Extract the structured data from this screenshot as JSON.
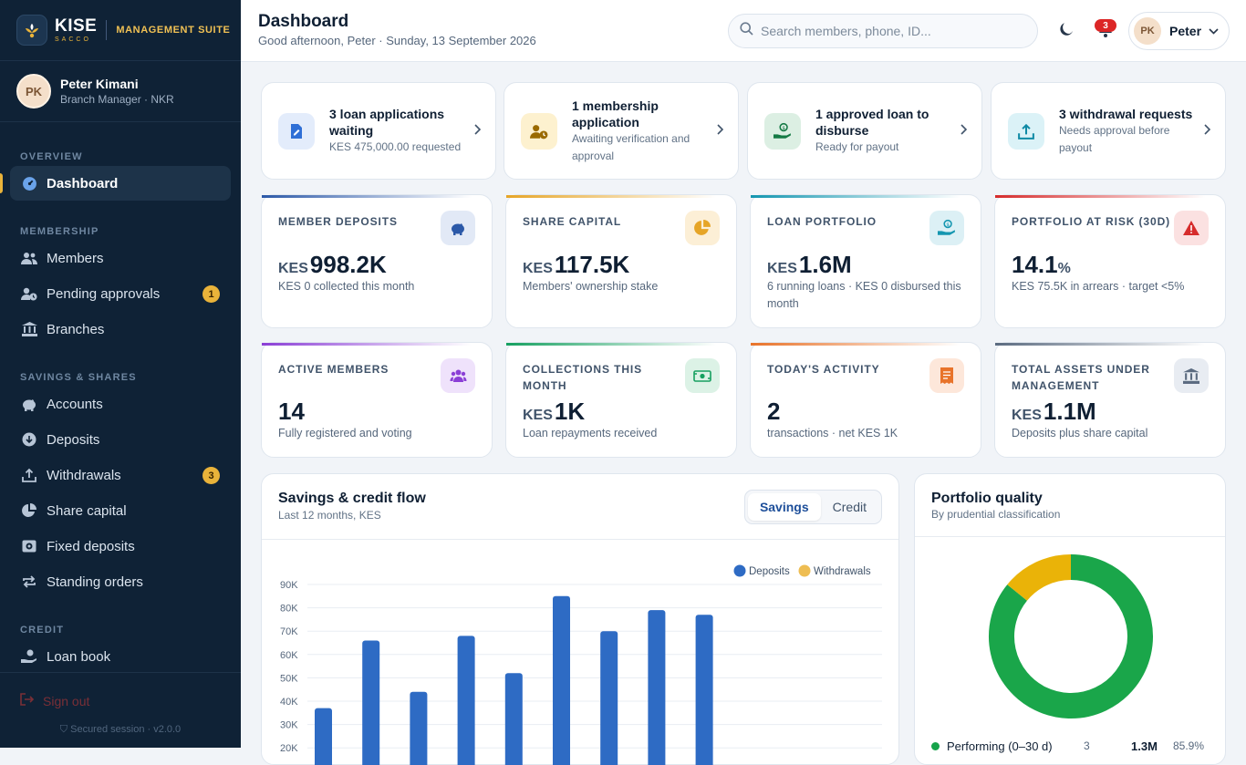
{
  "brand": {
    "name": "KISE",
    "tag": "SACCO",
    "suite": "MANAGEMENT SUITE"
  },
  "profile": {
    "initials": "PK",
    "name": "Peter Kimani",
    "role": "Branch Manager · NKR"
  },
  "nav": {
    "overview": {
      "title": "OVERVIEW",
      "items": [
        {
          "label": "Dashboard",
          "icon": "gauge-icon"
        }
      ]
    },
    "membership": {
      "title": "MEMBERSHIP",
      "items": [
        {
          "label": "Members",
          "icon": "users-icon"
        },
        {
          "label": "Pending approvals",
          "icon": "user-clock-icon",
          "badge": "1"
        },
        {
          "label": "Branches",
          "icon": "bank-icon"
        }
      ]
    },
    "savings": {
      "title": "SAVINGS & SHARES",
      "items": [
        {
          "label": "Accounts",
          "icon": "piggy-bank-icon"
        },
        {
          "label": "Deposits",
          "icon": "download-icon"
        },
        {
          "label": "Withdrawals",
          "icon": "upload-icon",
          "badge": "3"
        },
        {
          "label": "Share capital",
          "icon": "pie-icon"
        },
        {
          "label": "Fixed deposits",
          "icon": "vault-icon"
        },
        {
          "label": "Standing orders",
          "icon": "repeat-icon"
        }
      ]
    },
    "credit": {
      "title": "CREDIT",
      "items": [
        {
          "label": "Loan book",
          "icon": "hand-coin-icon"
        }
      ]
    }
  },
  "footer": {
    "signout": "Sign out",
    "secure": "Secured session · v2.0.0"
  },
  "header": {
    "title": "Dashboard",
    "subtitle": "Good afternoon, Peter · Sunday, 13 September 2026",
    "search_placeholder": "Search members, phone, ID...",
    "notifications": "3",
    "user_initials": "PK",
    "user_name": "Peter"
  },
  "actions": [
    {
      "title": "3 loan applications waiting",
      "sub": "KES 475,000.00 requested",
      "icon": "file-sign-icon",
      "color": "#2f6fd6",
      "bg": "#e3ecfb"
    },
    {
      "title": "1 membership application",
      "sub": "Awaiting verification and approval",
      "icon": "user-clock-icon",
      "color": "#9a6a00",
      "bg": "#fdf1cf"
    },
    {
      "title": "1 approved loan to disburse",
      "sub": "Ready for payout",
      "icon": "hand-coin-icon",
      "color": "#157a45",
      "bg": "#dcefe3"
    },
    {
      "title": "3 withdrawal requests",
      "sub": "Needs approval before payout",
      "icon": "upload-icon",
      "color": "#0f8aa5",
      "bg": "#dbf2f7"
    }
  ],
  "kpis": [
    {
      "label": "MEMBER DEPOSITS",
      "currency": "KES",
      "value": "998.2K",
      "unit": "",
      "sub": "KES 0 collected this month",
      "icon": "piggy-bank-icon",
      "color": "#2c59a8",
      "bg": "#e2e9f6"
    },
    {
      "label": "SHARE CAPITAL",
      "currency": "KES",
      "value": "117.5K",
      "unit": "",
      "sub": "Members' ownership stake",
      "icon": "pie-icon",
      "color": "#e6a527",
      "bg": "#fcefd6"
    },
    {
      "label": "LOAN PORTFOLIO",
      "currency": "KES",
      "value": "1.6M",
      "unit": "",
      "sub": "6 running loans · KES 0 disbursed this month",
      "icon": "hand-coin-icon",
      "color": "#1496b0",
      "bg": "#dcf0f5"
    },
    {
      "label": "PORTFOLIO AT RISK (30D)",
      "currency": "",
      "value": "14.1",
      "unit": "%",
      "sub": "KES 75.5K in arrears · target <5%",
      "icon": "warning-icon",
      "color": "#d62c2c",
      "bg": "#fbe1e1"
    },
    {
      "label": "ACTIVE MEMBERS",
      "currency": "",
      "value": "14",
      "unit": "",
      "sub": "Fully registered and voting",
      "icon": "users-icon",
      "color": "#8b3fd6",
      "bg": "#efe2fb"
    },
    {
      "label": "COLLECTIONS THIS MONTH",
      "currency": "KES",
      "value": "1K",
      "unit": "",
      "sub": "Loan repayments received",
      "icon": "cash-icon",
      "color": "#16a060",
      "bg": "#dcf2e6"
    },
    {
      "label": "TODAY'S ACTIVITY",
      "currency": "",
      "value": "2",
      "unit": "",
      "sub": "transactions · net KES 1K",
      "icon": "receipt-icon",
      "color": "#e8732a",
      "bg": "#fde7da"
    },
    {
      "label": "TOTAL ASSETS UNDER MANAGEMENT",
      "currency": "KES",
      "value": "1.1M",
      "unit": "",
      "sub": "Deposits plus share capital",
      "icon": "bank-icon",
      "color": "#5b6b80",
      "bg": "#e8ecf2"
    }
  ],
  "flow": {
    "title": "Savings & credit flow",
    "subtitle": "Last 12 months, KES",
    "tabs": [
      "Savings",
      "Credit"
    ]
  },
  "chart_data": {
    "type": "bar",
    "series": [
      {
        "name": "Deposits",
        "color": "#2e6bc4",
        "values": [
          37000,
          66000,
          44000,
          68000,
          52000,
          85000,
          70000,
          79000,
          77000,
          0,
          0,
          0
        ]
      },
      {
        "name": "Withdrawals",
        "color": "#eebd52",
        "values": [
          0,
          0,
          0,
          0,
          0,
          0,
          0,
          0,
          0,
          0,
          0,
          0
        ]
      }
    ],
    "yticks": [
      "90K",
      "80K",
      "70K",
      "60K",
      "50K",
      "40K",
      "30K",
      "20K"
    ],
    "ylim": [
      0,
      90000
    ],
    "legend": "top-right",
    "grid": true
  },
  "quality": {
    "title": "Portfolio quality",
    "subtitle": "By prudential classification",
    "rows": [
      {
        "label": "Performing (0–30 d)",
        "count": "3",
        "amount": "1.3M",
        "pct": "85.9%"
      }
    ],
    "slices": [
      {
        "value": 85.9,
        "color": "#1aa64a"
      },
      {
        "value": 14.1,
        "color": "#eab308"
      }
    ]
  }
}
